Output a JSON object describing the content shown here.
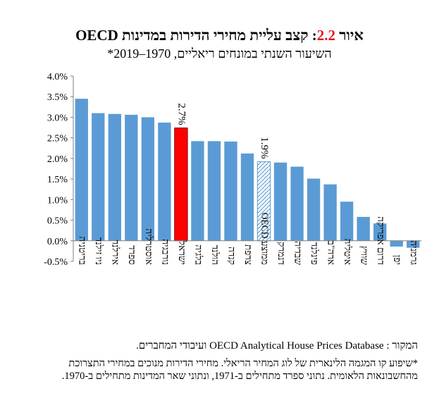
{
  "title": {
    "prefix": "איור",
    "number": "2.2",
    "text": ": קצב עליית מחירי הדירות במדינות OECD"
  },
  "subtitle": "השיעור השנתי במונחים ריאליים, 1970–2019*",
  "colors": {
    "bar": "#5b9bd5",
    "highlight": "#ff0000",
    "highlight_border": "#7a0000",
    "title_number": "#e4141b"
  },
  "chart_data": {
    "type": "bar",
    "categories": [
      "בריטניה",
      "ניו זילנד",
      "אירלנד",
      "ספרד",
      "אוסטרליה",
      "נורבגיה",
      "ישראל",
      "בלגיה",
      "הולנד",
      "קנדה",
      "צרפת",
      "ממוצע OECD",
      "דנמרק",
      "שבדיה",
      "פינלנד",
      "ארה\"ב",
      "איטליה",
      "שוויץ",
      "דרום אפריקה",
      "יפן",
      "גרמניה"
    ],
    "values": [
      3.45,
      3.1,
      3.08,
      3.06,
      3.0,
      2.87,
      2.74,
      2.42,
      2.42,
      2.41,
      2.12,
      1.92,
      1.9,
      1.8,
      1.51,
      1.37,
      0.95,
      0.58,
      0.42,
      -0.14,
      -0.17
    ],
    "highlight": {
      "index": 6,
      "style": "solid-red",
      "label": "2.7%"
    },
    "hatched": {
      "index": 11,
      "style": "hatched",
      "label": "1.9%"
    },
    "ylim": [
      -0.5,
      4.0
    ],
    "yticks": [
      "-0.5%",
      "0.0%",
      "0.5%",
      "1.0%",
      "1.5%",
      "2.0%",
      "2.5%",
      "3.0%",
      "3.5%",
      "4.0%"
    ],
    "ytick_values": [
      -0.5,
      0.0,
      0.5,
      1.0,
      1.5,
      2.0,
      2.5,
      3.0,
      3.5,
      4.0
    ],
    "xlabel": "",
    "ylabel": "",
    "grid": false,
    "legend": "none"
  },
  "source": "המקור : OECD Analytical House Prices Database ועיבודי המחברים.",
  "note": "*שיפוע קו המגמה הלינארית של לוג המחיר הריאלי. מחירי הדירות מנוכים במחירי התצרוכת מהחשבונאות הלאומית. נתוני ספרד מתחילים ב-1971, ונתוני שאר המדינות מתחילים ב-1970."
}
